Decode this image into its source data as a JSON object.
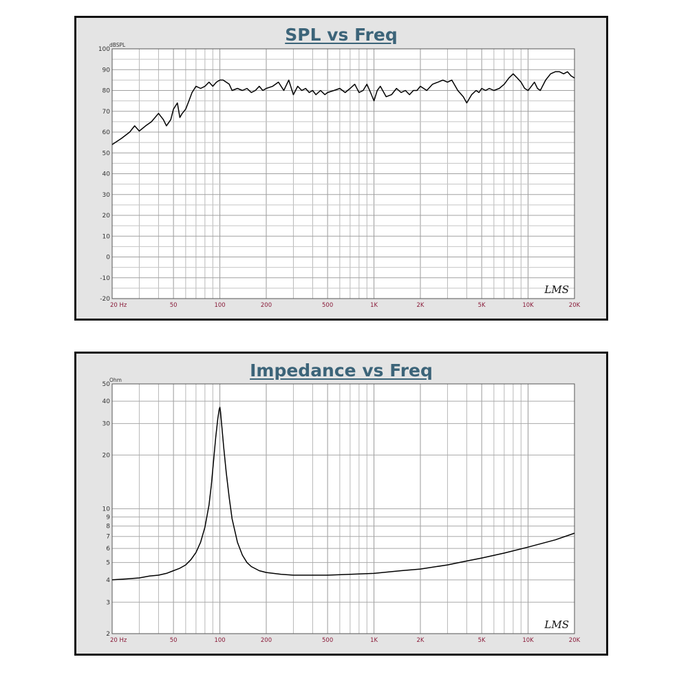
{
  "chart_data": [
    {
      "id": "spl",
      "type": "line",
      "title": "SPL vs Freq",
      "ylabel": "dBSPL",
      "xscale": "log",
      "yscale": "linear",
      "xlim": [
        20,
        20000
      ],
      "ylim": [
        -20,
        100
      ],
      "grid": true,
      "watermark": "LMS",
      "y_ticks": [
        -20,
        -10,
        0,
        10,
        20,
        30,
        40,
        50,
        60,
        70,
        80,
        90,
        100
      ],
      "y_tick_labels": [
        "-20",
        "-10",
        "0",
        "10",
        "20",
        "30",
        "40",
        "50",
        "60",
        "70",
        "80",
        "90",
        "100"
      ],
      "x_ticks": [
        20,
        50,
        100,
        200,
        500,
        1000,
        2000,
        5000,
        10000,
        20000
      ],
      "x_tick_labels": [
        "20 Hz",
        "50",
        "100",
        "200",
        "500",
        "1K",
        "2K",
        "5K",
        "10K",
        "20K"
      ],
      "series": [
        {
          "color": "#000000",
          "x": [
            20,
            23,
            26,
            28,
            30,
            33,
            36,
            40,
            43,
            45,
            48,
            50,
            53,
            55,
            57,
            60,
            63,
            66,
            70,
            75,
            80,
            85,
            90,
            95,
            100,
            105,
            110,
            115,
            120,
            130,
            140,
            150,
            160,
            170,
            180,
            190,
            200,
            220,
            240,
            260,
            280,
            300,
            320,
            340,
            360,
            380,
            400,
            420,
            450,
            480,
            500,
            550,
            600,
            650,
            700,
            750,
            800,
            850,
            900,
            950,
            1000,
            1050,
            1100,
            1200,
            1300,
            1400,
            1500,
            1600,
            1700,
            1800,
            1900,
            2000,
            2200,
            2400,
            2600,
            2800,
            3000,
            3200,
            3500,
            3800,
            4000,
            4300,
            4600,
            4800,
            5000,
            5300,
            5600,
            6000,
            6500,
            7000,
            7500,
            8000,
            8500,
            9000,
            9500,
            10000,
            10500,
            11000,
            11500,
            12000,
            13000,
            14000,
            15000,
            16000,
            17000,
            18000,
            19000,
            20000
          ],
          "y": [
            54,
            57,
            60,
            63,
            60.5,
            63,
            65,
            69,
            66,
            63,
            66,
            71,
            74,
            67,
            69,
            71,
            75,
            79,
            82,
            81,
            82,
            84,
            82,
            84,
            85,
            85,
            84,
            83,
            80,
            81,
            80,
            81,
            79,
            80,
            82,
            80,
            81,
            82,
            84,
            80,
            85,
            78,
            82,
            80,
            81,
            79,
            80,
            78,
            80,
            78,
            79,
            80,
            81,
            79,
            81,
            83,
            79,
            80,
            83,
            79,
            75,
            80,
            82,
            77,
            78,
            81,
            79,
            80,
            78,
            80,
            80,
            82,
            80,
            83,
            84,
            85,
            84,
            85,
            80,
            77,
            74,
            78,
            80,
            79,
            81,
            80,
            81,
            80,
            81,
            83,
            86,
            88,
            86,
            84,
            81,
            80,
            82,
            84,
            81,
            80,
            85,
            88,
            89,
            89,
            88,
            89,
            87,
            86
          ]
        }
      ]
    },
    {
      "id": "impedance",
      "type": "line",
      "title": "Impedance vs Freq",
      "ylabel": "Ohm",
      "xscale": "log",
      "yscale": "log",
      "xlim": [
        20,
        20000
      ],
      "ylim": [
        2,
        50
      ],
      "grid": true,
      "watermark": "LMS",
      "y_ticks": [
        2,
        3,
        4,
        5,
        6,
        7,
        8,
        9,
        10,
        20,
        30,
        40,
        50
      ],
      "y_tick_labels": [
        "2",
        "3",
        "4",
        "5",
        "6",
        "7",
        "8",
        "9",
        "10",
        "20",
        "30",
        "40",
        "50"
      ],
      "x_ticks": [
        20,
        50,
        100,
        200,
        500,
        1000,
        2000,
        5000,
        10000,
        20000
      ],
      "x_tick_labels": [
        "20 Hz",
        "50",
        "100",
        "200",
        "500",
        "1K",
        "2K",
        "5K",
        "10K",
        "20K"
      ],
      "series": [
        {
          "color": "#000000",
          "x": [
            20,
            25,
            30,
            35,
            40,
            45,
            50,
            55,
            60,
            65,
            70,
            75,
            80,
            85,
            88,
            91,
            94,
            97,
            99,
            100,
            101,
            103,
            106,
            110,
            115,
            120,
            130,
            140,
            150,
            160,
            180,
            200,
            250,
            300,
            400,
            500,
            700,
            1000,
            1500,
            2000,
            3000,
            4000,
            5000,
            7000,
            10000,
            15000,
            20000
          ],
          "y": [
            4.0,
            4.05,
            4.1,
            4.2,
            4.25,
            4.35,
            4.5,
            4.65,
            4.85,
            5.2,
            5.7,
            6.5,
            7.9,
            10.5,
            13.5,
            18.5,
            25,
            32,
            36,
            37,
            35,
            29,
            22,
            16,
            11.5,
            8.8,
            6.5,
            5.5,
            5.0,
            4.75,
            4.5,
            4.4,
            4.3,
            4.25,
            4.25,
            4.25,
            4.3,
            4.35,
            4.5,
            4.6,
            4.85,
            5.1,
            5.3,
            5.65,
            6.1,
            6.7,
            7.3
          ]
        }
      ]
    }
  ]
}
